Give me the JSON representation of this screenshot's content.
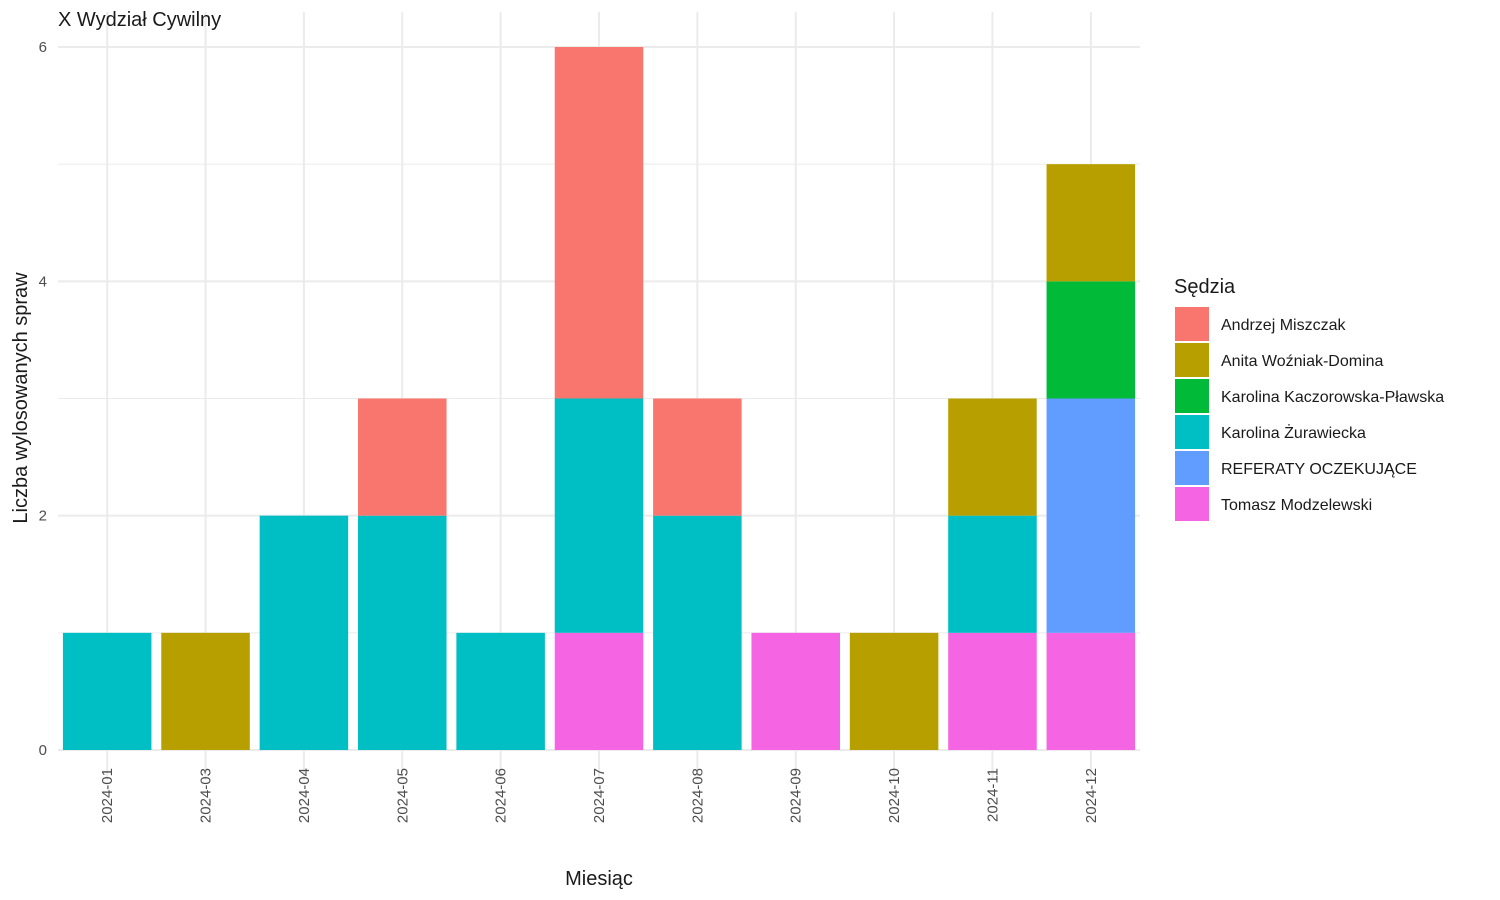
{
  "chart_data": {
    "type": "bar",
    "stacked": true,
    "title": "X Wydział Cywilny",
    "xlabel": "Miesiąc",
    "ylabel": "Liczba wylosowanych spraw",
    "ylim": [
      0,
      6
    ],
    "yticks": [
      "0",
      "2",
      "4",
      "6"
    ],
    "grid": true,
    "legend_title": "Sędzia",
    "legend_position": "right",
    "categories": [
      "2024-01",
      "2024-03",
      "2024-04",
      "2024-05",
      "2024-06",
      "2024-07",
      "2024-08",
      "2024-09",
      "2024-10",
      "2024-11",
      "2024-12"
    ],
    "series": [
      {
        "name": "Andrzej Miszczak",
        "color": "#F8766D",
        "values": [
          0,
          0,
          0,
          1,
          0,
          3,
          1,
          0,
          0,
          0,
          0
        ]
      },
      {
        "name": "Anita Woźniak-Domina",
        "color": "#B79F00",
        "values": [
          0,
          1,
          0,
          0,
          0,
          0,
          0,
          0,
          1,
          1,
          1
        ]
      },
      {
        "name": "Karolina Kaczorowska-Pławska",
        "color": "#00BA38",
        "values": [
          0,
          0,
          0,
          0,
          0,
          0,
          0,
          0,
          0,
          0,
          1
        ]
      },
      {
        "name": "Karolina Żurawiecka",
        "color": "#00BFC4",
        "values": [
          1,
          0,
          2,
          2,
          1,
          2,
          2,
          0,
          0,
          1,
          0
        ]
      },
      {
        "name": "REFERATY OCZEKUJĄCE",
        "color": "#619CFF",
        "values": [
          0,
          0,
          0,
          0,
          0,
          0,
          0,
          0,
          0,
          0,
          2
        ]
      },
      {
        "name": "Tomasz Modzelewski",
        "color": "#F564E3",
        "values": [
          0,
          0,
          0,
          0,
          0,
          1,
          0,
          1,
          0,
          1,
          1
        ]
      }
    ]
  }
}
